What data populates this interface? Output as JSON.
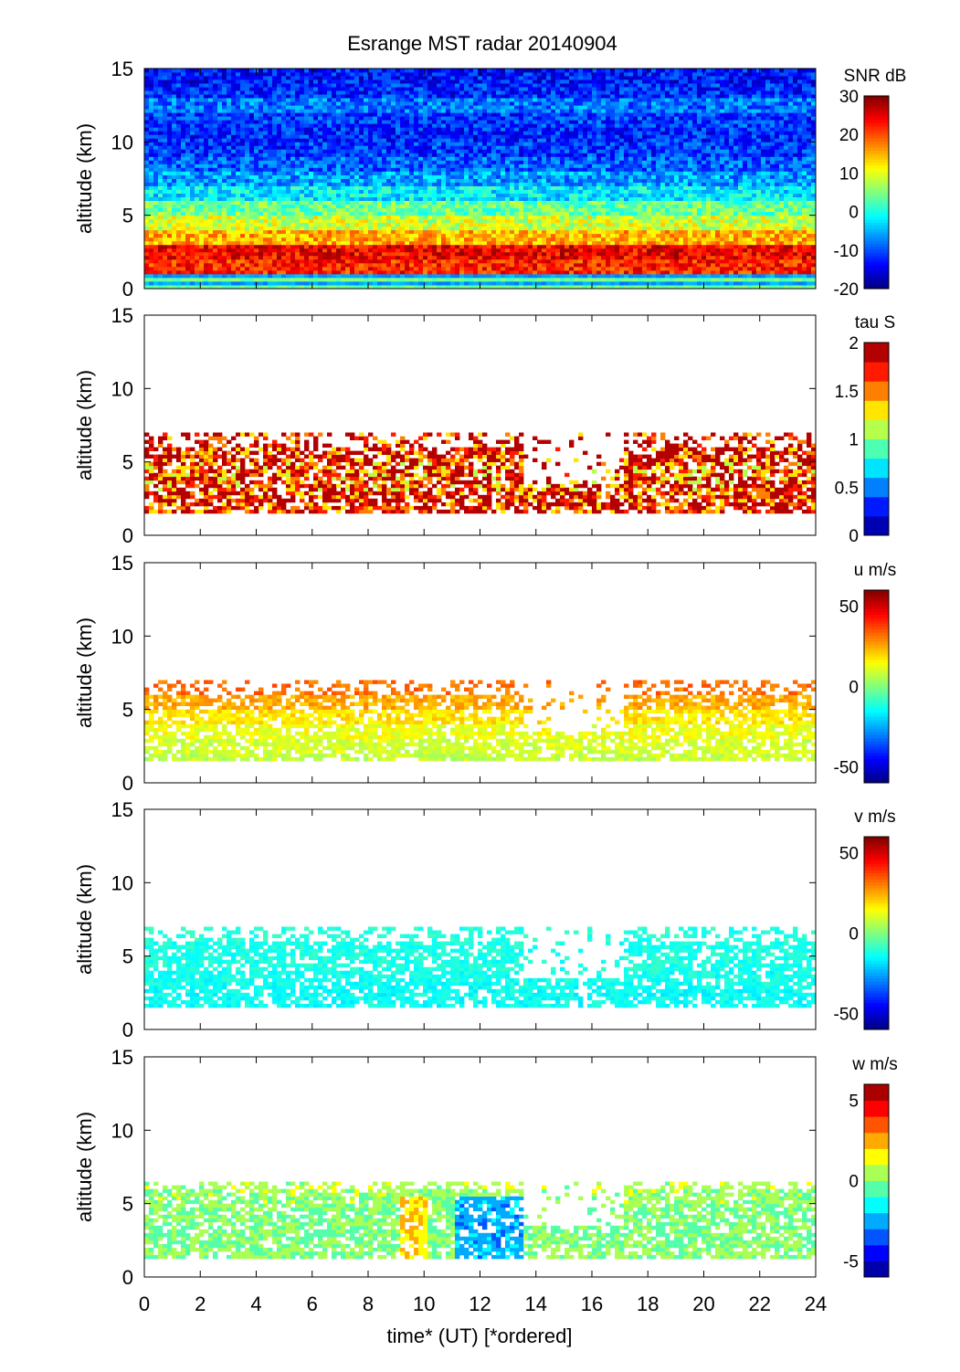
{
  "chart_data": {
    "type": "heatmap",
    "title": "Esrange MST radar 20140904",
    "xlabel": "time* (UT)   [*ordered]",
    "xlim": [
      0,
      24
    ],
    "xticks": [
      0,
      2,
      4,
      6,
      8,
      10,
      12,
      14,
      16,
      18,
      20,
      22,
      24
    ],
    "panels": [
      {
        "name": "snr",
        "colorbar_label": "SNR dB",
        "ylabel": "altitude (km)",
        "ylim": [
          0,
          15
        ],
        "yticks": [
          0,
          5,
          10,
          15
        ],
        "clim": [
          -20,
          30
        ],
        "cticks": [
          30,
          20,
          10,
          0,
          -10,
          -20
        ],
        "levels": 64,
        "coverage": [
          0,
          15
        ],
        "profile_by_km": [
          5,
          22,
          24,
          15,
          9,
          4,
          -2,
          -6,
          -9,
          -11,
          -12,
          -11,
          -8,
          -12,
          -13,
          -13
        ],
        "noise": 5
      },
      {
        "name": "tau",
        "colorbar_label": "tau S",
        "ylabel": "altitude (km)",
        "ylim": [
          0,
          15
        ],
        "yticks": [
          0,
          5,
          10,
          15
        ],
        "clim": [
          0,
          2
        ],
        "cticks": [
          2,
          1.5,
          1,
          0.5,
          0
        ],
        "levels": 10,
        "coverage": [
          1.5,
          7
        ],
        "profile_by_km": [
          null,
          1.8,
          1.8,
          1.7,
          1.7,
          1.8,
          1.9,
          1.9,
          null,
          null,
          null,
          null,
          null,
          null,
          null,
          null
        ],
        "noise": 0.6
      },
      {
        "name": "u",
        "colorbar_label": "u m/s",
        "ylabel": "altitude (km)",
        "ylim": [
          0,
          15
        ],
        "yticks": [
          0,
          5,
          10,
          15
        ],
        "clim": [
          -60,
          60
        ],
        "cticks": [
          50,
          0,
          -50
        ],
        "levels": 64,
        "coverage": [
          1.5,
          7
        ],
        "profile_by_km": [
          null,
          8,
          10,
          13,
          18,
          25,
          32,
          36,
          null,
          null,
          null,
          null,
          null,
          null,
          null,
          null
        ],
        "noise": 5
      },
      {
        "name": "v",
        "colorbar_label": "v m/s",
        "ylabel": "altitude (km)",
        "ylim": [
          0,
          15
        ],
        "yticks": [
          0,
          5,
          10,
          15
        ],
        "clim": [
          -60,
          60
        ],
        "cticks": [
          50,
          0,
          -50
        ],
        "levels": 64,
        "coverage": [
          1.5,
          7
        ],
        "profile_by_km": [
          null,
          -14,
          -14,
          -13,
          -12,
          -12,
          -11,
          -10,
          null,
          null,
          null,
          null,
          null,
          null,
          null,
          null
        ],
        "noise": 4
      },
      {
        "name": "w",
        "colorbar_label": "w m/s",
        "ylabel": "altitude (km)",
        "ylim": [
          0,
          15
        ],
        "yticks": [
          0,
          5,
          10,
          15
        ],
        "clim": [
          -6,
          6
        ],
        "cticks": [
          5,
          0,
          -5
        ],
        "levels": 12,
        "coverage": [
          1.3,
          6.5
        ],
        "profile_by_km": [
          null,
          0.2,
          0,
          0,
          0,
          0.3,
          0.6,
          1,
          null,
          null,
          null,
          null,
          null,
          null,
          null,
          null
        ],
        "noise": 0.8
      }
    ]
  }
}
